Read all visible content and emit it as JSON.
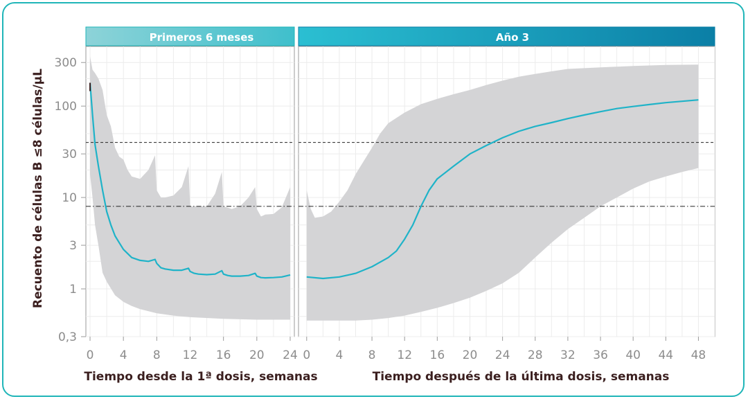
{
  "chart_data": {
    "type": "line",
    "ylabel": "Recuento de células B ≤8 células/µL",
    "yscale": "log",
    "ylim": [
      0.3,
      450
    ],
    "yticks": [
      0.3,
      1,
      3,
      10,
      30,
      100,
      300
    ],
    "ytick_labels": [
      "0,3",
      "1",
      "3",
      "10",
      "30",
      "100",
      "300"
    ],
    "reference_lines": [
      {
        "y": 40,
        "style": "dashed"
      },
      {
        "y": 8,
        "style": "dashdot"
      }
    ],
    "colors": {
      "line": "#1fb3c8",
      "band": "#d4d4d6",
      "header_left_a": "#8dd3d8",
      "header_left_b": "#3fbfcc",
      "header_right_a": "#2bbfd2",
      "header_right_b": "#0b7fa6",
      "text": "#3b1f1f"
    },
    "panels": [
      {
        "title": "Primeros 6 meses",
        "xlabel": "Tiempo desde la 1ª dosis, semanas",
        "xlim": [
          -0.5,
          24.5
        ],
        "xticks": [
          0,
          4,
          8,
          12,
          16,
          20,
          24
        ],
        "median": [
          [
            0,
            180
          ],
          [
            0.3,
            80
          ],
          [
            0.6,
            38
          ],
          [
            1,
            22
          ],
          [
            1.5,
            12
          ],
          [
            2,
            7
          ],
          [
            2.5,
            5
          ],
          [
            3,
            3.8
          ],
          [
            3.5,
            3.2
          ],
          [
            4,
            2.7
          ],
          [
            5,
            2.2
          ],
          [
            6,
            2.05
          ],
          [
            7,
            2.0
          ],
          [
            7.8,
            2.1
          ],
          [
            8,
            1.9
          ],
          [
            8.5,
            1.7
          ],
          [
            9,
            1.65
          ],
          [
            10,
            1.6
          ],
          [
            11,
            1.6
          ],
          [
            11.8,
            1.68
          ],
          [
            12,
            1.55
          ],
          [
            12.5,
            1.48
          ],
          [
            13,
            1.45
          ],
          [
            14,
            1.43
          ],
          [
            15,
            1.45
          ],
          [
            15.8,
            1.58
          ],
          [
            16,
            1.45
          ],
          [
            16.5,
            1.4
          ],
          [
            17,
            1.38
          ],
          [
            18,
            1.38
          ],
          [
            19,
            1.4
          ],
          [
            19.8,
            1.48
          ],
          [
            20,
            1.38
          ],
          [
            20.5,
            1.33
          ],
          [
            21,
            1.32
          ],
          [
            22,
            1.33
          ],
          [
            23,
            1.35
          ],
          [
            24,
            1.42
          ]
        ],
        "band_upper": [
          [
            0,
            350
          ],
          [
            0.3,
            250
          ],
          [
            0.6,
            230
          ],
          [
            1,
            200
          ],
          [
            1.5,
            150
          ],
          [
            2,
            80
          ],
          [
            2.5,
            60
          ],
          [
            3,
            35
          ],
          [
            3.5,
            28
          ],
          [
            4,
            26
          ],
          [
            4.5,
            20
          ],
          [
            5,
            17
          ],
          [
            6,
            16
          ],
          [
            7,
            20
          ],
          [
            7.8,
            29
          ],
          [
            8,
            12
          ],
          [
            8.5,
            10
          ],
          [
            9,
            10
          ],
          [
            10,
            10.5
          ],
          [
            11,
            13
          ],
          [
            11.8,
            22
          ],
          [
            12,
            8
          ],
          [
            13,
            8
          ],
          [
            14,
            8
          ],
          [
            15,
            11
          ],
          [
            15.8,
            19
          ],
          [
            16,
            8
          ],
          [
            17,
            7.5
          ],
          [
            18,
            8
          ],
          [
            19,
            10
          ],
          [
            19.8,
            13
          ],
          [
            20,
            7.5
          ],
          [
            20.5,
            6.2
          ],
          [
            21,
            6.5
          ],
          [
            22,
            6.6
          ],
          [
            23,
            7.8
          ],
          [
            24,
            13
          ]
        ],
        "band_lower": [
          [
            0,
            18
          ],
          [
            0.3,
            10
          ],
          [
            0.6,
            5
          ],
          [
            1,
            3
          ],
          [
            1.5,
            1.5
          ],
          [
            2,
            1.2
          ],
          [
            3,
            0.85
          ],
          [
            4,
            0.72
          ],
          [
            5,
            0.65
          ],
          [
            6,
            0.6
          ],
          [
            7,
            0.57
          ],
          [
            8,
            0.54
          ],
          [
            10,
            0.51
          ],
          [
            12,
            0.49
          ],
          [
            16,
            0.47
          ],
          [
            20,
            0.46
          ],
          [
            24,
            0.46
          ]
        ]
      },
      {
        "title": "Año 3",
        "xlabel": "Tiempo después de la última dosis, semanas",
        "xlim": [
          -1,
          50
        ],
        "xticks": [
          0,
          4,
          8,
          12,
          16,
          20,
          24,
          28,
          32,
          36,
          40,
          44,
          48
        ],
        "median": [
          [
            0,
            1.35
          ],
          [
            2,
            1.3
          ],
          [
            4,
            1.35
          ],
          [
            6,
            1.48
          ],
          [
            8,
            1.75
          ],
          [
            10,
            2.2
          ],
          [
            11,
            2.6
          ],
          [
            12,
            3.5
          ],
          [
            13,
            5
          ],
          [
            14,
            8
          ],
          [
            15,
            12
          ],
          [
            16,
            16
          ],
          [
            18,
            22
          ],
          [
            20,
            30
          ],
          [
            22,
            37
          ],
          [
            24,
            45
          ],
          [
            26,
            53
          ],
          [
            28,
            60
          ],
          [
            30,
            66
          ],
          [
            32,
            73
          ],
          [
            34,
            80
          ],
          [
            36,
            87
          ],
          [
            38,
            94
          ],
          [
            40,
            99
          ],
          [
            42,
            104
          ],
          [
            44,
            109
          ],
          [
            46,
            113
          ],
          [
            48,
            117
          ]
        ],
        "band_upper": [
          [
            0,
            12
          ],
          [
            0.5,
            7.5
          ],
          [
            1,
            6
          ],
          [
            2,
            6.2
          ],
          [
            3,
            7
          ],
          [
            4,
            9
          ],
          [
            5,
            12
          ],
          [
            6,
            18
          ],
          [
            8,
            35
          ],
          [
            9,
            50
          ],
          [
            10,
            65
          ],
          [
            12,
            85
          ],
          [
            14,
            105
          ],
          [
            16,
            120
          ],
          [
            18,
            135
          ],
          [
            20,
            150
          ],
          [
            22,
            170
          ],
          [
            24,
            190
          ],
          [
            26,
            210
          ],
          [
            28,
            225
          ],
          [
            30,
            240
          ],
          [
            32,
            255
          ],
          [
            36,
            265
          ],
          [
            40,
            275
          ],
          [
            44,
            282
          ],
          [
            48,
            285
          ]
        ],
        "band_lower": [
          [
            0,
            0.45
          ],
          [
            2,
            0.45
          ],
          [
            4,
            0.45
          ],
          [
            6,
            0.45
          ],
          [
            8,
            0.46
          ],
          [
            10,
            0.48
          ],
          [
            12,
            0.51
          ],
          [
            14,
            0.56
          ],
          [
            16,
            0.62
          ],
          [
            18,
            0.7
          ],
          [
            20,
            0.8
          ],
          [
            22,
            0.95
          ],
          [
            24,
            1.15
          ],
          [
            26,
            1.5
          ],
          [
            28,
            2.2
          ],
          [
            30,
            3.2
          ],
          [
            32,
            4.5
          ],
          [
            34,
            6
          ],
          [
            36,
            8
          ],
          [
            38,
            10
          ],
          [
            40,
            12.5
          ],
          [
            42,
            15
          ],
          [
            44,
            17
          ],
          [
            46,
            19
          ],
          [
            48,
            21
          ]
        ]
      }
    ]
  }
}
